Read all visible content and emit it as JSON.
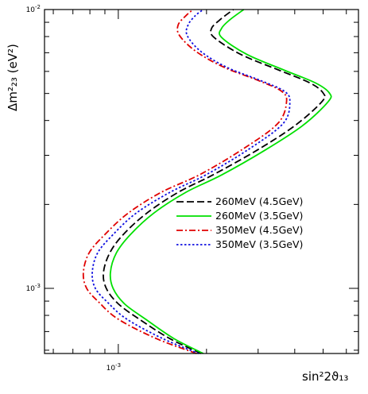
{
  "chart_data": {
    "type": "line",
    "title": "",
    "xlabel": "sin²2ϑ₁₃",
    "ylabel": "Δm²₂₃ (eV²)",
    "x_scale": "log",
    "y_scale": "log",
    "xlim": [
      0.00056,
      0.0066
    ],
    "ylim": [
      0.000584,
      0.01
    ],
    "grid": false,
    "legend_position": "center-right",
    "x_ticks": [
      {
        "value": 0.001,
        "base": "10",
        "exponent": "-3"
      }
    ],
    "y_ticks": [
      {
        "value": 0.001,
        "base": "10",
        "exponent": "-3"
      },
      {
        "value": 0.01,
        "base": "10",
        "exponent": "-2"
      }
    ],
    "series": [
      {
        "name": "260MeV (4.5GeV)",
        "color": "#000000",
        "dash": "dashed",
        "points": [
          [
            0.00192,
            0.000584
          ],
          [
            0.0015,
            0.00066
          ],
          [
            0.00118,
            0.000775
          ],
          [
            0.001,
            0.00088
          ],
          [
            0.00091,
            0.001
          ],
          [
            0.00089,
            0.00114
          ],
          [
            0.000935,
            0.00134
          ],
          [
            0.00104,
            0.00156
          ],
          [
            0.00125,
            0.00186
          ],
          [
            0.0016,
            0.00221
          ],
          [
            0.0021,
            0.00255
          ],
          [
            0.00296,
            0.00312
          ],
          [
            0.004,
            0.00383
          ],
          [
            0.00495,
            0.00467
          ],
          [
            0.005,
            0.00502
          ],
          [
            0.0045,
            0.00546
          ],
          [
            0.00355,
            0.00605
          ],
          [
            0.00262,
            0.0069
          ],
          [
            0.00212,
            0.00795
          ],
          [
            0.00208,
            0.00855
          ],
          [
            0.00222,
            0.00918
          ],
          [
            0.00247,
            0.01
          ]
        ]
      },
      {
        "name": "260MeV (3.5GeV)",
        "color": "#00e000",
        "dash": "solid",
        "points": [
          [
            0.00195,
            0.000584
          ],
          [
            0.00155,
            0.00066
          ],
          [
            0.00124,
            0.000775
          ],
          [
            0.00105,
            0.00088
          ],
          [
            0.00096,
            0.001
          ],
          [
            0.00094,
            0.00114
          ],
          [
            0.000985,
            0.00134
          ],
          [
            0.0011,
            0.00156
          ],
          [
            0.00132,
            0.00186
          ],
          [
            0.0017,
            0.00221
          ],
          [
            0.00225,
            0.00255
          ],
          [
            0.00315,
            0.00312
          ],
          [
            0.00425,
            0.00383
          ],
          [
            0.0052,
            0.00467
          ],
          [
            0.00525,
            0.00502
          ],
          [
            0.0047,
            0.00546
          ],
          [
            0.0037,
            0.00605
          ],
          [
            0.00275,
            0.0069
          ],
          [
            0.00225,
            0.00795
          ],
          [
            0.00225,
            0.00855
          ],
          [
            0.0024,
            0.00918
          ],
          [
            0.00268,
            0.01
          ]
        ]
      },
      {
        "name": "350MeV (4.5GeV)",
        "color": "#e00000",
        "dash": "dashdot",
        "points": [
          [
            0.00185,
            0.000584
          ],
          [
            0.00135,
            0.00066
          ],
          [
            0.001,
            0.000775
          ],
          [
            0.00086,
            0.00089
          ],
          [
            0.00078,
            0.001
          ],
          [
            0.00076,
            0.00114
          ],
          [
            0.000795,
            0.00134
          ],
          [
            0.0009,
            0.00156
          ],
          [
            0.00108,
            0.00186
          ],
          [
            0.0014,
            0.00221
          ],
          [
            0.0019,
            0.00256
          ],
          [
            0.00265,
            0.00315
          ],
          [
            0.0035,
            0.0039
          ],
          [
            0.00375,
            0.00466
          ],
          [
            0.0036,
            0.0051
          ],
          [
            0.003,
            0.00557
          ],
          [
            0.0023,
            0.0062
          ],
          [
            0.00185,
            0.00705
          ],
          [
            0.00162,
            0.00805
          ],
          [
            0.0016,
            0.0088
          ],
          [
            0.0017,
            0.0095
          ],
          [
            0.0018,
            0.01
          ]
        ]
      },
      {
        "name": "350MeV (3.5GeV)",
        "color": "#1010e0",
        "dash": "dotted",
        "points": [
          [
            0.00188,
            0.000584
          ],
          [
            0.00142,
            0.00066
          ],
          [
            0.00107,
            0.000775
          ],
          [
            0.00092,
            0.00089
          ],
          [
            0.000835,
            0.001
          ],
          [
            0.000815,
            0.00114
          ],
          [
            0.00085,
            0.00134
          ],
          [
            0.00096,
            0.00156
          ],
          [
            0.00115,
            0.00186
          ],
          [
            0.0015,
            0.00221
          ],
          [
            0.002,
            0.00256
          ],
          [
            0.00278,
            0.00315
          ],
          [
            0.00365,
            0.0039
          ],
          [
            0.00385,
            0.00466
          ],
          [
            0.00368,
            0.0051
          ],
          [
            0.00305,
            0.00557
          ],
          [
            0.00235,
            0.0062
          ],
          [
            0.00192,
            0.00705
          ],
          [
            0.00172,
            0.00805
          ],
          [
            0.00173,
            0.0088
          ],
          [
            0.00183,
            0.0095
          ],
          [
            0.00195,
            0.01
          ]
        ]
      }
    ]
  }
}
